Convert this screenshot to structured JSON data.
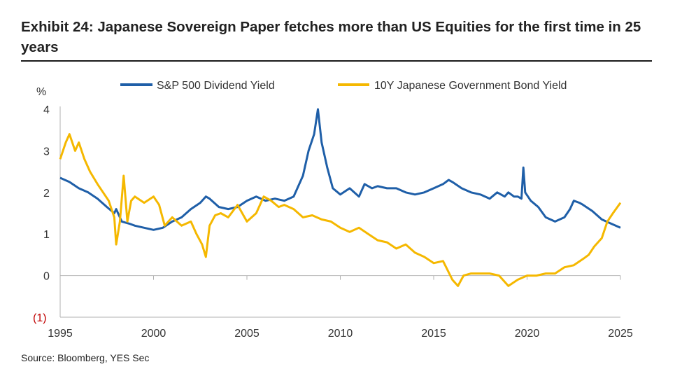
{
  "title": "Exhibit 24: Japanese Sovereign Paper fetches more than US Equities for the first time in 25 years",
  "source": "Source: Bloomberg, YES Sec",
  "chart_data": {
    "type": "line",
    "ylabel": "%",
    "ylim": [
      -1,
      4
    ],
    "xlim": [
      1995,
      2025
    ],
    "y_ticks": [
      {
        "value": 4,
        "label": "4"
      },
      {
        "value": 3,
        "label": "3"
      },
      {
        "value": 2,
        "label": "2"
      },
      {
        "value": 1,
        "label": "1"
      },
      {
        "value": 0,
        "label": "0"
      },
      {
        "value": -1,
        "label": "(1)"
      }
    ],
    "x_ticks": [
      {
        "value": 1995,
        "label": "1995"
      },
      {
        "value": 2000,
        "label": "2000"
      },
      {
        "value": 2005,
        "label": "2005"
      },
      {
        "value": 2010,
        "label": "2010"
      },
      {
        "value": 2015,
        "label": "2015"
      },
      {
        "value": 2020,
        "label": "2020"
      },
      {
        "value": 2025,
        "label": "2025"
      }
    ],
    "legend_position": "top",
    "series": [
      {
        "name": "S&P 500 Dividend Yield",
        "color": "#1f5fa8",
        "points": [
          [
            1995.0,
            2.35
          ],
          [
            1995.5,
            2.25
          ],
          [
            1996.0,
            2.1
          ],
          [
            1996.5,
            2.0
          ],
          [
            1997.0,
            1.85
          ],
          [
            1997.5,
            1.65
          ],
          [
            1997.9,
            1.5
          ],
          [
            1998.0,
            1.6
          ],
          [
            1998.3,
            1.3
          ],
          [
            1998.7,
            1.25
          ],
          [
            1999.0,
            1.2
          ],
          [
            1999.5,
            1.15
          ],
          [
            2000.0,
            1.1
          ],
          [
            2000.5,
            1.15
          ],
          [
            2001.0,
            1.3
          ],
          [
            2001.5,
            1.4
          ],
          [
            2002.0,
            1.6
          ],
          [
            2002.5,
            1.75
          ],
          [
            2002.8,
            1.9
          ],
          [
            2003.0,
            1.85
          ],
          [
            2003.5,
            1.65
          ],
          [
            2004.0,
            1.6
          ],
          [
            2004.5,
            1.65
          ],
          [
            2005.0,
            1.8
          ],
          [
            2005.5,
            1.9
          ],
          [
            2006.0,
            1.8
          ],
          [
            2006.5,
            1.85
          ],
          [
            2007.0,
            1.8
          ],
          [
            2007.5,
            1.9
          ],
          [
            2008.0,
            2.4
          ],
          [
            2008.3,
            3.0
          ],
          [
            2008.6,
            3.4
          ],
          [
            2008.8,
            4.0
          ],
          [
            2009.0,
            3.2
          ],
          [
            2009.3,
            2.6
          ],
          [
            2009.6,
            2.1
          ],
          [
            2010.0,
            1.95
          ],
          [
            2010.5,
            2.1
          ],
          [
            2011.0,
            1.9
          ],
          [
            2011.3,
            2.2
          ],
          [
            2011.7,
            2.1
          ],
          [
            2012.0,
            2.15
          ],
          [
            2012.5,
            2.1
          ],
          [
            2013.0,
            2.1
          ],
          [
            2013.5,
            2.0
          ],
          [
            2014.0,
            1.95
          ],
          [
            2014.5,
            2.0
          ],
          [
            2015.0,
            2.1
          ],
          [
            2015.5,
            2.2
          ],
          [
            2015.8,
            2.3
          ],
          [
            2016.0,
            2.25
          ],
          [
            2016.5,
            2.1
          ],
          [
            2017.0,
            2.0
          ],
          [
            2017.5,
            1.95
          ],
          [
            2018.0,
            1.85
          ],
          [
            2018.4,
            2.0
          ],
          [
            2018.8,
            1.9
          ],
          [
            2019.0,
            2.0
          ],
          [
            2019.3,
            1.9
          ],
          [
            2019.5,
            1.9
          ],
          [
            2019.7,
            1.85
          ],
          [
            2019.8,
            2.6
          ],
          [
            2019.9,
            2.0
          ],
          [
            2020.2,
            1.8
          ],
          [
            2020.6,
            1.65
          ],
          [
            2021.0,
            1.4
          ],
          [
            2021.5,
            1.3
          ],
          [
            2022.0,
            1.4
          ],
          [
            2022.3,
            1.6
          ],
          [
            2022.5,
            1.8
          ],
          [
            2022.8,
            1.75
          ],
          [
            2023.0,
            1.7
          ],
          [
            2023.5,
            1.55
          ],
          [
            2024.0,
            1.35
          ],
          [
            2024.5,
            1.25
          ],
          [
            2025.0,
            1.15
          ]
        ]
      },
      {
        "name": "10Y Japanese Government Bond Yield",
        "color": "#f5b800",
        "points": [
          [
            1995.0,
            2.8
          ],
          [
            1995.3,
            3.2
          ],
          [
            1995.5,
            3.4
          ],
          [
            1995.8,
            3.0
          ],
          [
            1996.0,
            3.2
          ],
          [
            1996.3,
            2.8
          ],
          [
            1996.6,
            2.5
          ],
          [
            1997.0,
            2.2
          ],
          [
            1997.3,
            2.0
          ],
          [
            1997.6,
            1.8
          ],
          [
            1997.9,
            1.4
          ],
          [
            1998.0,
            0.75
          ],
          [
            1998.2,
            1.3
          ],
          [
            1998.4,
            2.4
          ],
          [
            1998.6,
            1.3
          ],
          [
            1998.8,
            1.8
          ],
          [
            1999.0,
            1.9
          ],
          [
            1999.5,
            1.75
          ],
          [
            2000.0,
            1.9
          ],
          [
            2000.3,
            1.7
          ],
          [
            2000.6,
            1.2
          ],
          [
            2001.0,
            1.4
          ],
          [
            2001.5,
            1.2
          ],
          [
            2002.0,
            1.3
          ],
          [
            2002.3,
            1.0
          ],
          [
            2002.6,
            0.75
          ],
          [
            2002.8,
            0.45
          ],
          [
            2003.0,
            1.2
          ],
          [
            2003.3,
            1.45
          ],
          [
            2003.6,
            1.5
          ],
          [
            2004.0,
            1.4
          ],
          [
            2004.5,
            1.7
          ],
          [
            2005.0,
            1.3
          ],
          [
            2005.5,
            1.5
          ],
          [
            2005.9,
            1.9
          ],
          [
            2006.3,
            1.8
          ],
          [
            2006.7,
            1.65
          ],
          [
            2007.0,
            1.7
          ],
          [
            2007.5,
            1.6
          ],
          [
            2008.0,
            1.4
          ],
          [
            2008.5,
            1.45
          ],
          [
            2009.0,
            1.35
          ],
          [
            2009.5,
            1.3
          ],
          [
            2010.0,
            1.15
          ],
          [
            2010.5,
            1.05
          ],
          [
            2011.0,
            1.15
          ],
          [
            2011.5,
            1.0
          ],
          [
            2012.0,
            0.85
          ],
          [
            2012.5,
            0.8
          ],
          [
            2013.0,
            0.65
          ],
          [
            2013.5,
            0.75
          ],
          [
            2014.0,
            0.55
          ],
          [
            2014.5,
            0.45
          ],
          [
            2015.0,
            0.3
          ],
          [
            2015.5,
            0.35
          ],
          [
            2016.0,
            -0.1
          ],
          [
            2016.3,
            -0.25
          ],
          [
            2016.6,
            0.0
          ],
          [
            2017.0,
            0.05
          ],
          [
            2017.5,
            0.05
          ],
          [
            2018.0,
            0.05
          ],
          [
            2018.5,
            0.0
          ],
          [
            2018.8,
            -0.15
          ],
          [
            2019.0,
            -0.25
          ],
          [
            2019.5,
            -0.1
          ],
          [
            2020.0,
            0.0
          ],
          [
            2020.5,
            0.0
          ],
          [
            2021.0,
            0.05
          ],
          [
            2021.5,
            0.05
          ],
          [
            2022.0,
            0.2
          ],
          [
            2022.5,
            0.25
          ],
          [
            2023.0,
            0.4
          ],
          [
            2023.3,
            0.5
          ],
          [
            2023.6,
            0.7
          ],
          [
            2024.0,
            0.9
          ],
          [
            2024.3,
            1.3
          ],
          [
            2024.6,
            1.5
          ],
          [
            2025.0,
            1.75
          ]
        ]
      }
    ]
  }
}
